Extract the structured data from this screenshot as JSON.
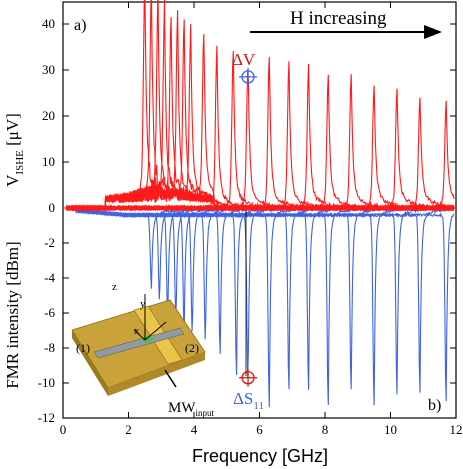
{
  "chart_data": [
    {
      "panel_label": "a)",
      "type": "line",
      "ylabel": "V",
      "ylabel_subscript": "ISHE",
      "ylabel_unit": "[μV]",
      "ylim": [
        -3,
        45
      ],
      "yticks": [
        0,
        10,
        20,
        30,
        40
      ],
      "xlim": [
        0,
        12
      ],
      "xticks": [
        0,
        2,
        4,
        6,
        8,
        10,
        12
      ],
      "arrow_label": "H increasing",
      "marker_label": "ΔV",
      "marker": {
        "x": 5.65,
        "y": 28.5
      },
      "color": "#ff1a1a",
      "series": [
        {
          "x_peak": 2.5,
          "peak": 42
        },
        {
          "x_peak": 2.7,
          "peak": 41
        },
        {
          "x_peak": 2.9,
          "peak": 40
        },
        {
          "x_peak": 3.1,
          "peak": 37
        },
        {
          "x_peak": 3.3,
          "peak": 36
        },
        {
          "x_peak": 3.5,
          "peak": 36
        },
        {
          "x_peak": 3.7,
          "peak": 35
        },
        {
          "x_peak": 3.9,
          "peak": 34
        },
        {
          "x_peak": 4.3,
          "peak": 33
        },
        {
          "x_peak": 4.7,
          "peak": 32
        },
        {
          "x_peak": 5.2,
          "peak": 31
        },
        {
          "x_peak": 5.65,
          "peak": 28.5
        },
        {
          "x_peak": 6.3,
          "peak": 30
        },
        {
          "x_peak": 6.9,
          "peak": 29
        },
        {
          "x_peak": 7.5,
          "peak": 28
        },
        {
          "x_peak": 8.1,
          "peak": 26
        },
        {
          "x_peak": 8.8,
          "peak": 26
        },
        {
          "x_peak": 9.5,
          "peak": 24
        },
        {
          "x_peak": 10.2,
          "peak": 23
        },
        {
          "x_peak": 10.9,
          "peak": 21
        },
        {
          "x_peak": 11.7,
          "peak": 20
        }
      ]
    },
    {
      "panel_label": "b)",
      "type": "line",
      "ylabel": "FMR intensity [dBm]",
      "ylim": [
        -12,
        0.8
      ],
      "yticks": [
        0,
        -2,
        -4,
        -6,
        -8,
        -10,
        -12
      ],
      "xlabel": "Frequency [GHz]",
      "xlim": [
        0,
        12
      ],
      "xticks": [
        0,
        2,
        4,
        6,
        8,
        10,
        12
      ],
      "marker_label": "ΔS",
      "marker_label_subscript": "11",
      "marker": {
        "x": 5.65,
        "y": -9.7
      },
      "color": "#3d63e6",
      "series": [
        {
          "x_dip": 2.7,
          "dip": -4.0
        },
        {
          "x_dip": 2.95,
          "dip": -5.0
        },
        {
          "x_dip": 3.2,
          "dip": -5.6
        },
        {
          "x_dip": 3.45,
          "dip": -6.1
        },
        {
          "x_dip": 3.7,
          "dip": -6.5
        },
        {
          "x_dip": 3.95,
          "dip": -7.0
        },
        {
          "x_dip": 4.35,
          "dip": -7.4
        },
        {
          "x_dip": 4.8,
          "dip": -8.0
        },
        {
          "x_dip": 5.3,
          "dip": -9.2
        },
        {
          "x_dip": 5.65,
          "dip": -9.7
        },
        {
          "x_dip": 6.3,
          "dip": -11.0
        },
        {
          "x_dip": 6.9,
          "dip": -10.0
        },
        {
          "x_dip": 7.5,
          "dip": -10.0
        },
        {
          "x_dip": 8.1,
          "dip": -10.9
        },
        {
          "x_dip": 8.8,
          "dip": -10.0
        },
        {
          "x_dip": 9.5,
          "dip": -10.9
        },
        {
          "x_dip": 10.2,
          "dip": -10.3
        },
        {
          "x_dip": 10.9,
          "dip": -10.1
        },
        {
          "x_dip": 11.7,
          "dip": -10.6
        }
      ]
    }
  ],
  "inset": {
    "axis_z": "z",
    "axis_y": "y",
    "axis_x": "x",
    "port1": "(1)",
    "port2": "(2)",
    "mw_label": "MW",
    "mw_subscript": "input"
  }
}
